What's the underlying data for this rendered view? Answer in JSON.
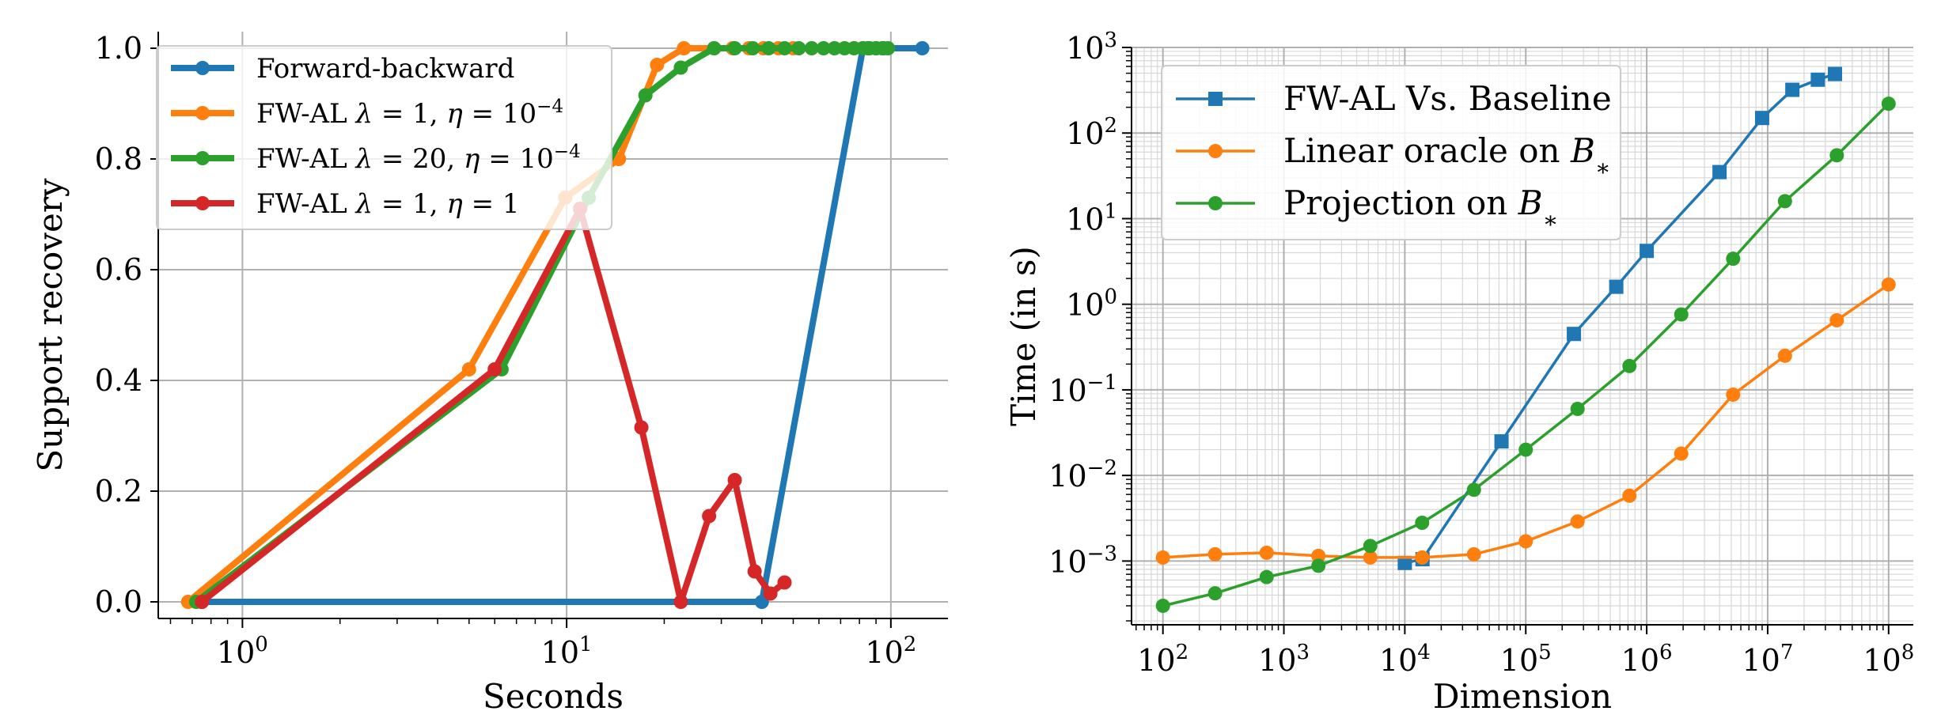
{
  "chart_data": [
    {
      "type": "line",
      "xlabel": "Seconds",
      "ylabel": "Support recovery",
      "xscale": "log",
      "xlim": [
        0.55,
        150
      ],
      "ylim": [
        -0.03,
        1.03
      ],
      "grid": true,
      "legend_position": "upper-left",
      "xticks": [
        {
          "v": 1,
          "base": "10",
          "exp": "0"
        },
        {
          "v": 10,
          "base": "10",
          "exp": "1"
        },
        {
          "v": 100,
          "base": "10",
          "exp": "2"
        }
      ],
      "yticks": [
        {
          "v": 0,
          "label": "0.0"
        },
        {
          "v": 0.2,
          "label": "0.2"
        },
        {
          "v": 0.4,
          "label": "0.4"
        },
        {
          "v": 0.6,
          "label": "0.6"
        },
        {
          "v": 0.8,
          "label": "0.8"
        },
        {
          "v": 1.0,
          "label": "1.0"
        }
      ],
      "series": [
        {
          "name": "Forward-backward",
          "color": "#1f77b4",
          "x": [
            0.75,
            40,
            82,
            85,
            90,
            95,
            125
          ],
          "y": [
            0,
            0,
            1,
            1,
            1,
            1,
            1
          ]
        },
        {
          "name": "FW-AL λ = 1, η = 10^-4",
          "color": "#ff7f0e",
          "x": [
            0.68,
            5.0,
            9.9,
            14.5,
            19.0,
            23.0,
            28.5,
            32.5,
            36.5,
            40.5,
            45.0,
            50.0
          ],
          "y": [
            0.0,
            0.42,
            0.73,
            0.8,
            0.97,
            1.0,
            1.0,
            1.0,
            1.0,
            1.0,
            1.0,
            1.0
          ]
        },
        {
          "name": "FW-AL λ = 20, η = 10^-4",
          "color": "#2ca02c",
          "x": [
            0.72,
            6.3,
            11.7,
            17.5,
            22.5,
            28.5,
            33.0,
            37.5,
            42.0,
            47.0,
            52.0,
            57.0,
            62.0,
            67.0,
            72.0,
            77.0,
            82.0,
            86.0,
            90.0,
            94.0,
            98.0
          ],
          "y": [
            0.0,
            0.42,
            0.73,
            0.915,
            0.965,
            1.0,
            1.0,
            1.0,
            1.0,
            1.0,
            1.0,
            1.0,
            1.0,
            1.0,
            1.0,
            1.0,
            1.0,
            1.0,
            1.0,
            1.0,
            1.0
          ]
        },
        {
          "name": "FW-AL λ = 1, η = 1",
          "color": "#d62728",
          "x": [
            0.75,
            6.0,
            11.0,
            17.0,
            22.5,
            27.5,
            33.0,
            38.0,
            42.5,
            47.0
          ],
          "y": [
            0.0,
            0.42,
            0.71,
            0.315,
            0.0,
            0.155,
            0.22,
            0.055,
            0.015,
            0.035
          ]
        }
      ],
      "legend": [
        {
          "parts": [
            {
              "t": "Forward-backward"
            }
          ]
        },
        {
          "parts": [
            {
              "t": "FW-AL  "
            },
            {
              "t": "λ",
              "i": true
            },
            {
              "t": " = 1,  "
            },
            {
              "t": "η",
              "i": true
            },
            {
              "t": " = 10"
            },
            {
              "t": "−4",
              "sup": true
            }
          ]
        },
        {
          "parts": [
            {
              "t": "FW-AL  "
            },
            {
              "t": "λ",
              "i": true
            },
            {
              "t": " = 20,  "
            },
            {
              "t": "η",
              "i": true
            },
            {
              "t": " = 10"
            },
            {
              "t": "−4",
              "sup": true
            }
          ]
        },
        {
          "parts": [
            {
              "t": "FW-AL  "
            },
            {
              "t": "λ",
              "i": true
            },
            {
              "t": " = 1,  "
            },
            {
              "t": "η",
              "i": true
            },
            {
              "t": " = 1"
            }
          ]
        }
      ]
    },
    {
      "type": "line",
      "xlabel": "Dimension",
      "ylabel": "Time (in s)",
      "xscale": "log",
      "yscale": "log",
      "xlim": [
        55,
        160000000
      ],
      "ylim": [
        0.00018,
        1000
      ],
      "grid": "major and minor",
      "legend_position": "upper-left",
      "xticks": [
        {
          "v": 100,
          "base": "10",
          "exp": "2"
        },
        {
          "v": 1000,
          "base": "10",
          "exp": "3"
        },
        {
          "v": 10000,
          "base": "10",
          "exp": "4"
        },
        {
          "v": 100000,
          "base": "10",
          "exp": "5"
        },
        {
          "v": 1000000,
          "base": "10",
          "exp": "6"
        },
        {
          "v": 10000000,
          "base": "10",
          "exp": "7"
        },
        {
          "v": 100000000,
          "base": "10",
          "exp": "8"
        }
      ],
      "yticks": [
        {
          "v": 0.001,
          "base": "10",
          "exp": "−3"
        },
        {
          "v": 0.01,
          "base": "10",
          "exp": "−2"
        },
        {
          "v": 0.1,
          "base": "10",
          "exp": "−1"
        },
        {
          "v": 1,
          "base": "10",
          "exp": "0"
        },
        {
          "v": 10,
          "base": "10",
          "exp": "1"
        },
        {
          "v": 100,
          "base": "10",
          "exp": "2"
        },
        {
          "v": 1000,
          "base": "10",
          "exp": "3"
        }
      ],
      "series": [
        {
          "name": "FW-AL Vs. Baseline",
          "color": "#1f77b4",
          "marker": "square",
          "x": [
            10000,
            14000,
            63000,
            250000,
            560000,
            1000000,
            4000000,
            9000000,
            16000000,
            26000000,
            36000000
          ],
          "y": [
            0.00095,
            0.00105,
            0.025,
            0.45,
            1.6,
            4.2,
            35,
            150,
            320,
            420,
            490
          ]
        },
        {
          "name": "Linear oracle on B*",
          "color": "#ff7f0e",
          "marker": "circle",
          "x": [
            100,
            270,
            720,
            1930,
            5180,
            13900,
            37300,
            100000,
            268000,
            720000,
            1930000,
            5180000,
            13900000,
            37300000,
            100000000
          ],
          "y": [
            0.0011,
            0.0012,
            0.00125,
            0.00115,
            0.0011,
            0.0011,
            0.0012,
            0.0017,
            0.0029,
            0.0058,
            0.018,
            0.088,
            0.25,
            0.65,
            1.7
          ]
        },
        {
          "name": "Projection on B*",
          "color": "#2ca02c",
          "marker": "circle",
          "x": [
            100,
            270,
            720,
            1930,
            5180,
            13900,
            37300,
            100000,
            268000,
            720000,
            1930000,
            5180000,
            13900000,
            37300000,
            100000000
          ],
          "y": [
            0.0003,
            0.00042,
            0.00065,
            0.00088,
            0.0015,
            0.0028,
            0.0068,
            0.02,
            0.06,
            0.19,
            0.76,
            3.4,
            16,
            55,
            220
          ]
        }
      ],
      "legend": [
        {
          "parts": [
            {
              "t": "FW-AL Vs. Baseline"
            }
          ]
        },
        {
          "parts": [
            {
              "t": "Linear oracle on "
            },
            {
              "t": "B",
              "i": true
            },
            {
              "t": "∗",
              "sub": true
            }
          ]
        },
        {
          "parts": [
            {
              "t": "Projection on "
            },
            {
              "t": "B",
              "i": true
            },
            {
              "t": "∗",
              "sub": true
            }
          ]
        }
      ]
    }
  ]
}
